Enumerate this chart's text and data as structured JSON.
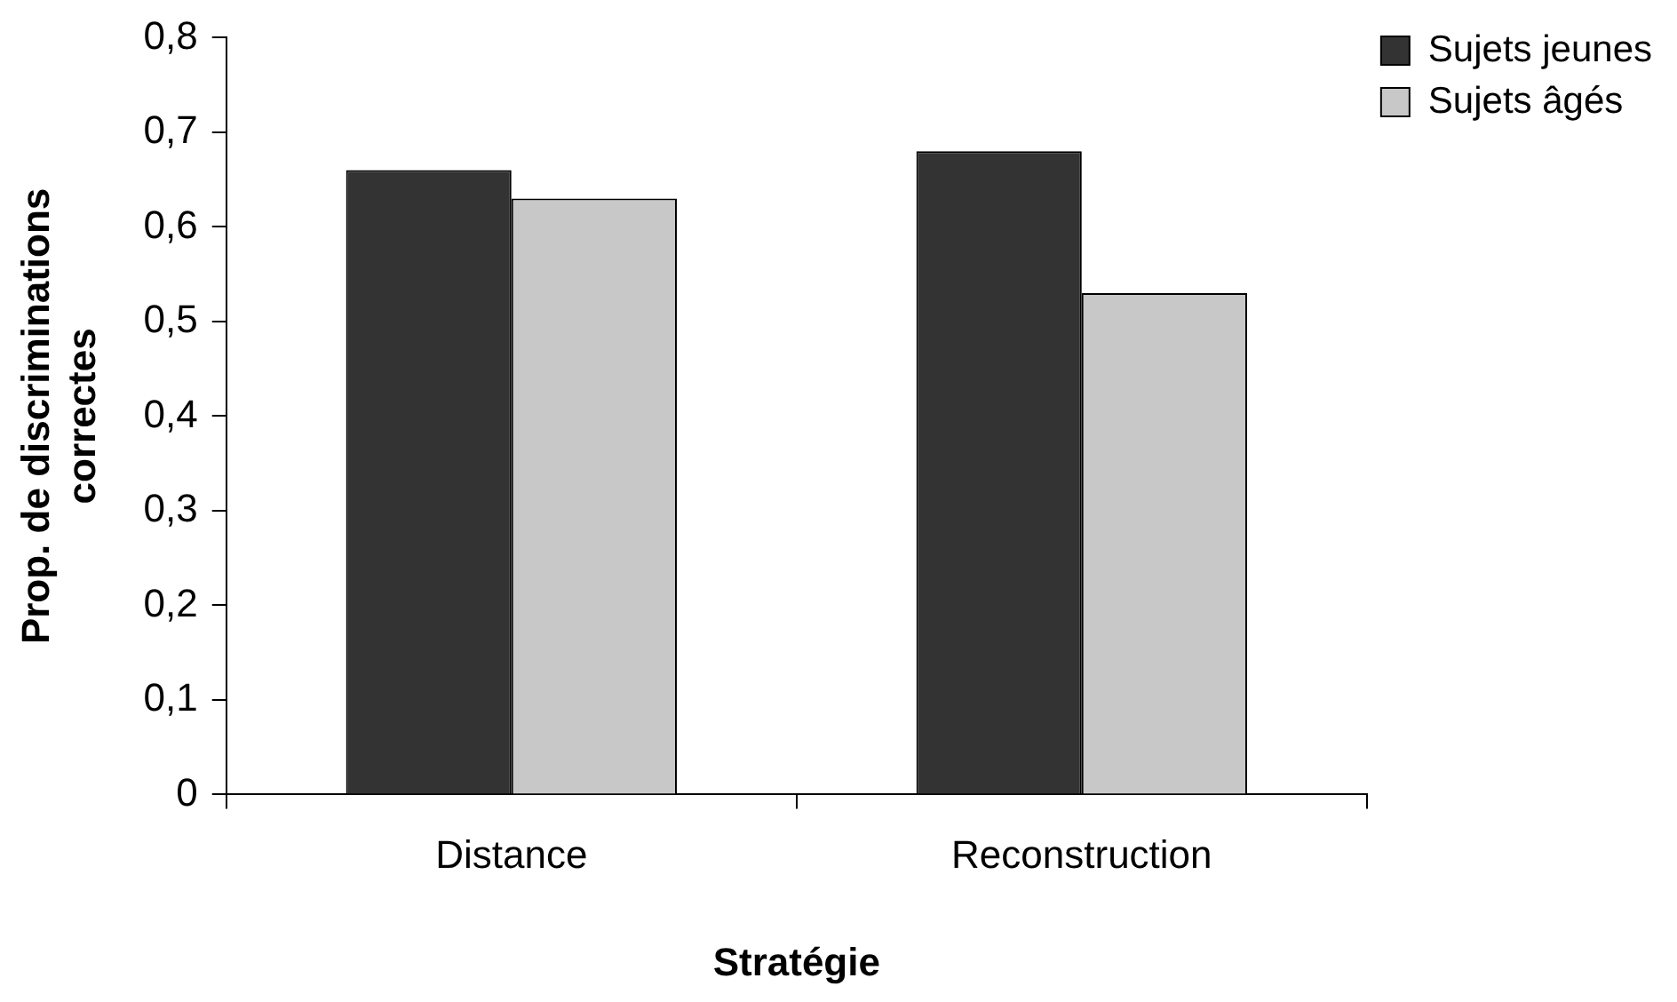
{
  "chart_data": {
    "type": "bar",
    "xlabel": "Stratégie",
    "ylabel": "Prop. de discriminations correctes",
    "categories": [
      "Distance",
      "Reconstruction"
    ],
    "series": [
      {
        "name": "Sujets jeunes",
        "color": "#333333",
        "values": [
          0.66,
          0.68
        ]
      },
      {
        "name": "Sujets âgés",
        "color": "#c8c8c8",
        "values": [
          0.63,
          0.53
        ]
      }
    ],
    "ylim": [
      0,
      0.8
    ],
    "yticks": [
      {
        "value": 0,
        "label": "0"
      },
      {
        "value": 0.1,
        "label": "0,1"
      },
      {
        "value": 0.2,
        "label": "0,2"
      },
      {
        "value": 0.3,
        "label": "0,3"
      },
      {
        "value": 0.4,
        "label": "0,4"
      },
      {
        "value": 0.5,
        "label": "0,5"
      },
      {
        "value": 0.6,
        "label": "0,6"
      },
      {
        "value": 0.7,
        "label": "0,7"
      },
      {
        "value": 0.8,
        "label": "0,8"
      }
    ],
    "grid": false,
    "legend": "top right"
  }
}
